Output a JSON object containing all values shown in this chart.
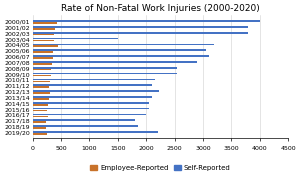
{
  "title": "Rate of Non-Fatal Work Injuries (2000-2020)",
  "categories": [
    "2019/20",
    "2018/19",
    "2017/18",
    "2016/17",
    "2015/16",
    "2014/15",
    "2013/14",
    "2012/13",
    "2011/12",
    "2010/11",
    "2009/10",
    "2008/09",
    "2007/08",
    "2006/07",
    "2005/06",
    "2004/05",
    "2003/04",
    "2002/03",
    "2001/02",
    "2000/01"
  ],
  "employee_reported": [
    250,
    240,
    240,
    270,
    260,
    270,
    280,
    300,
    290,
    300,
    320,
    330,
    340,
    350,
    360,
    450,
    370,
    380,
    390,
    430
  ],
  "self_reported": [
    2200,
    1850,
    1800,
    2000,
    2050,
    2050,
    2100,
    2230,
    2100,
    2150,
    2550,
    2550,
    2900,
    3100,
    3050,
    3200,
    1500,
    3800,
    3800,
    4000
  ],
  "employee_color": "#C8722A",
  "self_color": "#4472C4",
  "background_color": "#ffffff",
  "xlim": [
    0,
    4500
  ],
  "xticks": [
    0,
    500,
    1000,
    1500,
    2000,
    2500,
    3000,
    3500,
    4000,
    4500
  ],
  "title_fontsize": 6.5,
  "tick_fontsize": 4.5,
  "legend_fontsize": 5.0,
  "bar_height": 0.28,
  "bar_gap": 0.05
}
